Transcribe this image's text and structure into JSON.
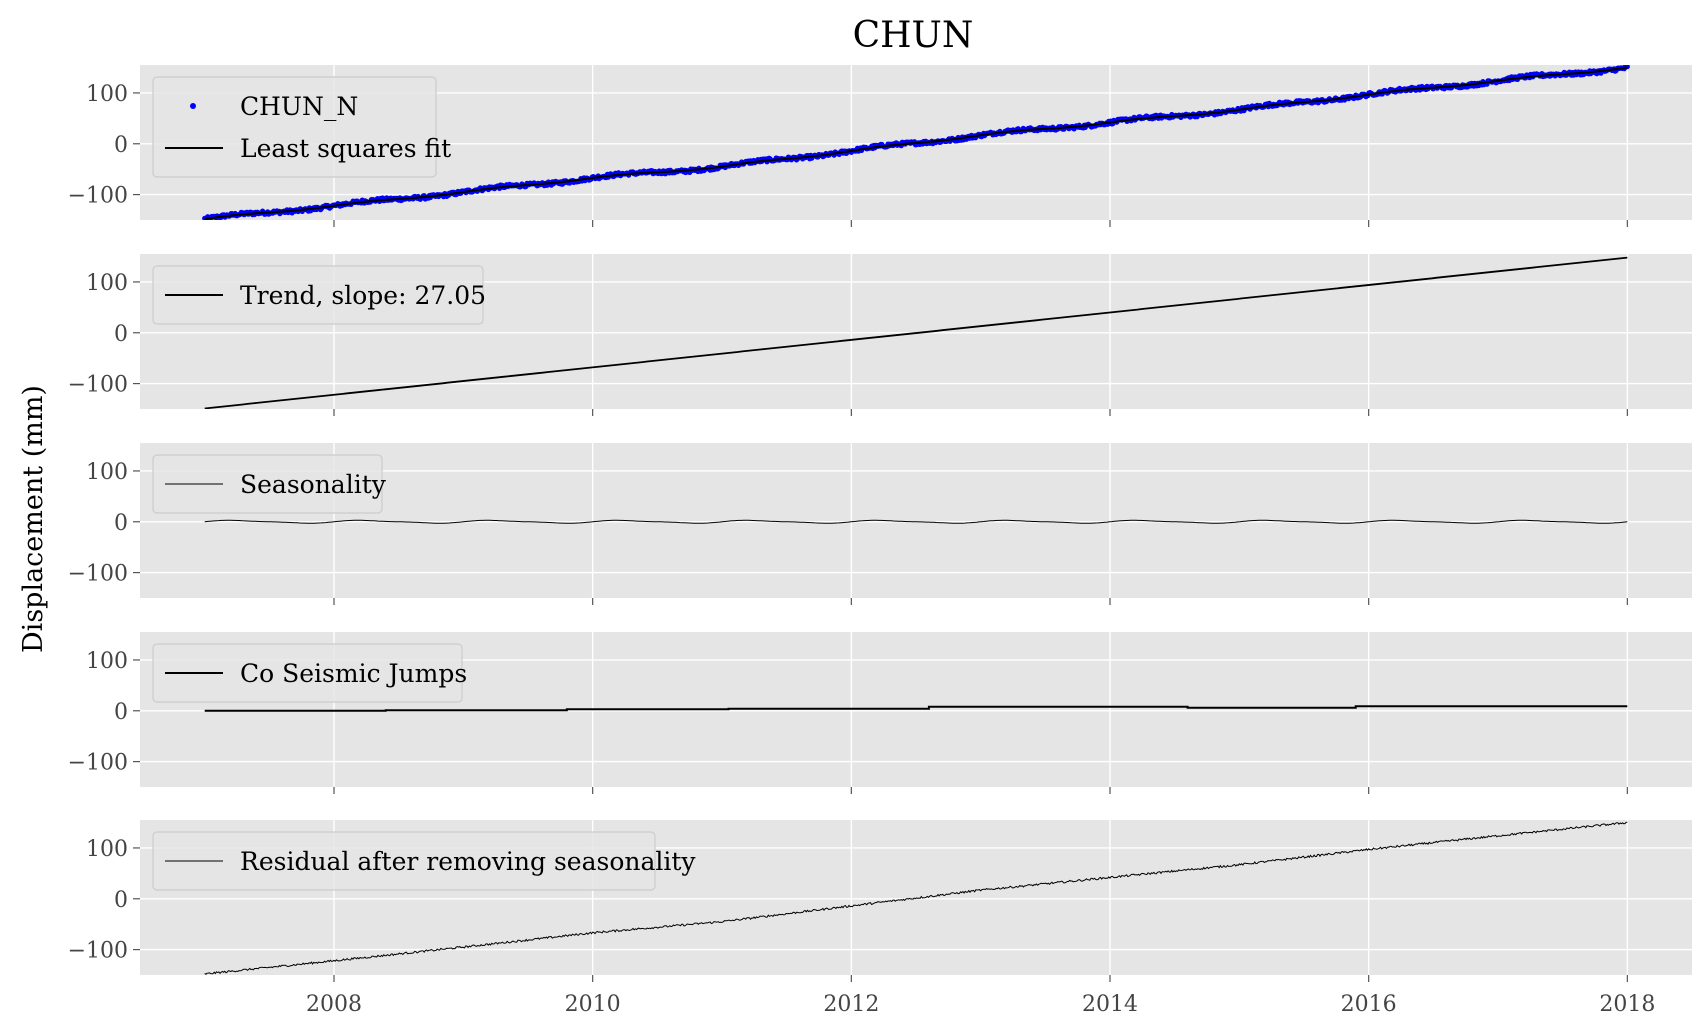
{
  "chart_data": {
    "type": "line",
    "title": "CHUN",
    "ylabel": "Displacement (mm)",
    "xlim": [
      2006.5,
      2018.5
    ],
    "x_ticks": [
      2008,
      2010,
      2012,
      2014,
      2016,
      2018
    ],
    "x_tick_labels": [
      "2008",
      "2010",
      "2012",
      "2014",
      "2016",
      "2018"
    ],
    "ylim": [
      -150,
      155
    ],
    "y_ticks": [
      -100,
      0,
      100
    ],
    "y_tick_labels": [
      "−100",
      "0",
      "100"
    ],
    "grid": true,
    "legend_position": "upper-left",
    "x_range": [
      2007.0,
      2018.0
    ],
    "colors": {
      "panel_bg": "#e5e5e5",
      "grid": "#ffffff",
      "observed": "#0000ff",
      "line": "#000000"
    },
    "panels": [
      {
        "series": [
          {
            "name": "CHUN_N",
            "kind": "points",
            "color": "#0000ff",
            "x": [
              2007.0,
              2008.0,
              2009.0,
              2010.0,
              2011.0,
              2012.0,
              2013.0,
              2014.0,
              2015.0,
              2016.0,
              2017.0,
              2018.0
            ],
            "y": [
              -148,
              -122,
              -95,
              -67,
              -45,
              -14,
              17,
              42,
              67,
              97,
              124,
              150
            ]
          },
          {
            "name": "Least squares fit",
            "kind": "line",
            "color": "#000000",
            "x": [
              2007.0,
              2008.0,
              2009.0,
              2010.0,
              2011.0,
              2012.0,
              2013.0,
              2014.0,
              2015.0,
              2016.0,
              2017.0,
              2018.0
            ],
            "y": [
              -148,
              -122,
              -95,
              -67,
              -45,
              -14,
              17,
              42,
              67,
              97,
              124,
              150
            ]
          }
        ]
      },
      {
        "series": [
          {
            "name": "Trend, slope: 27.05",
            "kind": "line",
            "color": "#000000",
            "x": [
              2007.0,
              2018.0
            ],
            "y": [
              -149,
              148
            ]
          }
        ]
      },
      {
        "series": [
          {
            "name": "Seasonality",
            "kind": "seasonal",
            "color": "#000000",
            "amplitude": 2.5,
            "period": 1.0
          }
        ]
      },
      {
        "series": [
          {
            "name": "Co Seismic Jumps",
            "kind": "step",
            "color": "#000000",
            "x": [
              2007.0,
              2008.4,
              2009.8,
              2011.05,
              2012.6,
              2014.6,
              2015.9,
              2018.0
            ],
            "y": [
              0,
              1,
              3,
              4,
              8,
              6,
              9,
              9
            ]
          }
        ]
      },
      {
        "series": [
          {
            "name": "Residual after removing seasonality",
            "kind": "line",
            "color": "#000000",
            "x": [
              2007.0,
              2008.0,
              2009.0,
              2010.0,
              2011.0,
              2012.0,
              2013.0,
              2014.0,
              2015.0,
              2016.0,
              2017.0,
              2018.0
            ],
            "y": [
              -148,
              -122,
              -95,
              -67,
              -45,
              -14,
              17,
              42,
              67,
              97,
              124,
              150
            ]
          }
        ]
      }
    ]
  }
}
